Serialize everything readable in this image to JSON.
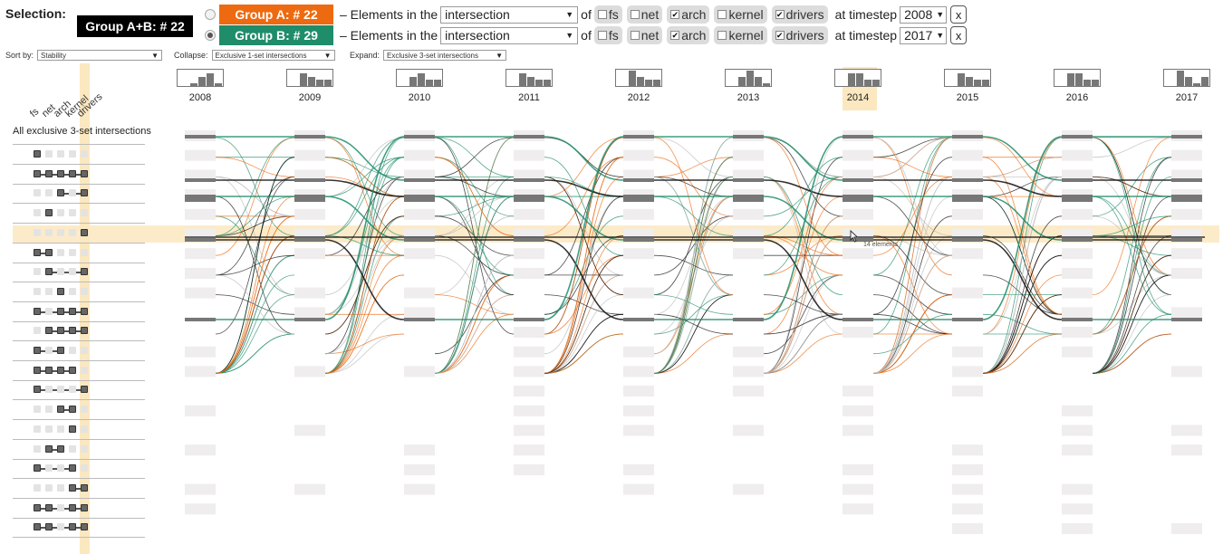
{
  "header": {
    "selection_label": "Selection:",
    "group_ab_label": "Group A+B: # 22",
    "group_a": {
      "label": "Group A: # 22",
      "color": "#ee6a10",
      "selected": false,
      "prefix_text": "– Elements in the",
      "mode": "intersection",
      "of_text": "of",
      "sets": [
        {
          "name": "fs",
          "checked": false
        },
        {
          "name": "net",
          "checked": false
        },
        {
          "name": "arch",
          "checked": true
        },
        {
          "name": "kernel",
          "checked": false
        },
        {
          "name": "drivers",
          "checked": true
        }
      ],
      "timestep_text": "at timestep",
      "timestep": "2008",
      "close_label": "x"
    },
    "group_b": {
      "label": "Group B: # 29",
      "color": "#1f8c6a",
      "selected": true,
      "prefix_text": "– Elements in the",
      "mode": "intersection",
      "of_text": "of",
      "sets": [
        {
          "name": "fs",
          "checked": false
        },
        {
          "name": "net",
          "checked": false
        },
        {
          "name": "arch",
          "checked": true
        },
        {
          "name": "kernel",
          "checked": false
        },
        {
          "name": "drivers",
          "checked": true
        }
      ],
      "timestep_text": "at timestep",
      "timestep": "2017",
      "close_label": "x"
    }
  },
  "controls": {
    "sort_label": "Sort by:",
    "sort_value": "Stability",
    "collapse_label": "Collapse:",
    "collapse_value": "Exclusive 1-set intersections",
    "expand_label": "Expand:",
    "expand_value": "Exclusive 3-set intersections"
  },
  "matrix": {
    "set_names": [
      "fs",
      "net",
      "arch",
      "kernel",
      "drivers"
    ],
    "all_label": "All exclusive 3-set intersections",
    "highlight_color": "#fbe8c0",
    "highlight_set": "drivers",
    "rows": [
      [
        1,
        0,
        0,
        0,
        0
      ],
      [
        1,
        1,
        1,
        1,
        1
      ],
      [
        0,
        0,
        1,
        0,
        1
      ],
      [
        0,
        1,
        0,
        0,
        0
      ],
      [
        0,
        0,
        0,
        0,
        1
      ],
      [
        1,
        1,
        0,
        0,
        0
      ],
      [
        0,
        1,
        0,
        0,
        1
      ],
      [
        0,
        0,
        1,
        0,
        0
      ],
      [
        1,
        0,
        1,
        1,
        1
      ],
      [
        0,
        1,
        1,
        1,
        1
      ],
      [
        1,
        0,
        1,
        0,
        0
      ],
      [
        1,
        1,
        1,
        1,
        0
      ],
      [
        1,
        0,
        0,
        0,
        1
      ],
      [
        0,
        0,
        1,
        1,
        0
      ],
      [
        0,
        0,
        0,
        1,
        0
      ],
      [
        0,
        1,
        1,
        0,
        0
      ],
      [
        1,
        0,
        0,
        1,
        0
      ],
      [
        0,
        0,
        0,
        1,
        1
      ],
      [
        1,
        1,
        0,
        1,
        1
      ],
      [
        1,
        1,
        0,
        1,
        1
      ]
    ]
  },
  "timeline": {
    "years": [
      "2008",
      "2009",
      "2010",
      "2011",
      "2012",
      "2013",
      "2014",
      "2015",
      "2016",
      "2017"
    ],
    "highlight_year": "2014",
    "hist_values": [
      [
        1,
        3,
        4,
        1
      ],
      [
        4,
        3,
        2,
        2
      ],
      [
        3,
        4,
        2,
        2
      ],
      [
        4,
        3,
        2,
        2
      ],
      [
        5,
        3,
        2,
        2
      ],
      [
        3,
        5,
        3,
        1
      ],
      [
        4,
        4,
        2,
        2
      ],
      [
        4,
        3,
        2,
        2
      ],
      [
        4,
        4,
        2,
        2
      ],
      [
        5,
        3,
        1,
        3
      ]
    ],
    "tooltip": "14 elements",
    "colors": {
      "group_a": "#ee6a10",
      "group_b": "#1f8c6a",
      "both": "#111111",
      "other": "#bbbbbb"
    }
  }
}
